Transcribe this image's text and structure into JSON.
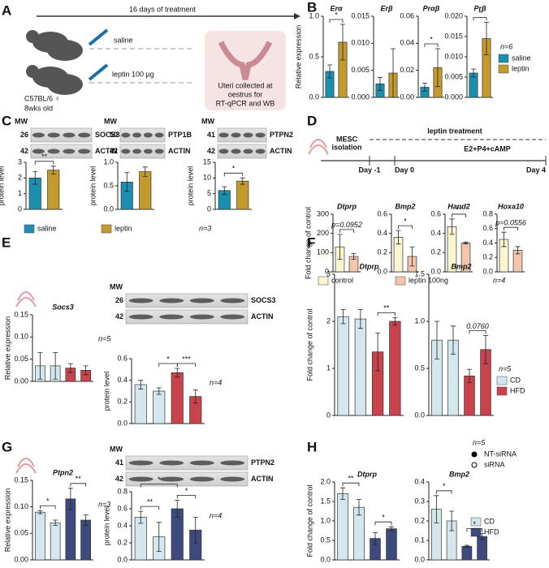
{
  "panel_labels": [
    "A",
    "B",
    "C",
    "D",
    "E",
    "F",
    "G",
    "H"
  ],
  "panel_a": {
    "duration": "16 days of treatment",
    "group1": "saline",
    "group2": "leptin 100 µg",
    "strain": "C57BL/6 ♀",
    "age": "8wks old",
    "outcome": [
      "Uteri collected at",
      "oestrus for",
      "RT-qPCR and WB"
    ]
  },
  "panel_d_schematic": {
    "isolation": [
      "MESC",
      "isolation"
    ],
    "treatment": "leptin treatment",
    "hormones": "E2+P4+cAMP",
    "days": [
      "Day -1",
      "Day 0",
      "Day 4"
    ]
  },
  "blots": [
    {
      "mw": "MW",
      "rows": [
        {
          "size": "26",
          "protein": "SOCS3"
        },
        {
          "size": "42",
          "protein": "ACTIN"
        }
      ]
    },
    {
      "mw": "MW",
      "rows": [
        {
          "size": "50",
          "protein": "PTP1B"
        },
        {
          "size": "42",
          "protein": "ACTIN"
        }
      ]
    },
    {
      "mw": "MW",
      "rows": [
        {
          "size": "41",
          "protein": "PTPN2"
        },
        {
          "size": "42",
          "protein": "ACTIN"
        }
      ]
    },
    {
      "mw": "MW",
      "rows": [
        {
          "size": "26",
          "protein": "SOCS3"
        },
        {
          "size": "42",
          "protein": "ACTIN"
        }
      ]
    },
    {
      "mw": "MW",
      "rows": [
        {
          "size": "41",
          "protein": "PTPN2"
        },
        {
          "size": "42",
          "protein": "ACTIN"
        }
      ]
    }
  ],
  "legends": [
    {
      "n": "n=6",
      "items": [
        {
          "name": "saline",
          "color": "#1b8fb0"
        },
        {
          "name": "leptin",
          "color": "#c49a2c"
        }
      ]
    },
    {
      "n": "n=3",
      "items": [
        {
          "name": "saline",
          "color": "#1b8fb0"
        },
        {
          "name": "leptin",
          "color": "#c49a2c"
        }
      ]
    },
    {
      "n": "n=4",
      "items": [
        {
          "name": "control",
          "color": "#fbf6cf"
        },
        {
          "name": "leptin 100ng",
          "color": "#f3c6ac"
        }
      ]
    },
    {
      "n": "n=5",
      "items": [
        {
          "name": "CD",
          "color": "#d4e7ec"
        },
        {
          "name": "HFD",
          "color": "#c8434b"
        }
      ]
    },
    {
      "n": "n=5",
      "items": [
        {
          "name": "NT-siRNA",
          "marker": "filled"
        },
        {
          "name": "siRNA",
          "marker": "open"
        },
        {
          "name": "CD",
          "color": "#d4e7ec"
        },
        {
          "name": "HFD",
          "color": "#3c4a7d"
        }
      ]
    }
  ],
  "chart_data": [
    {
      "type": "bar",
      "title": "Erα",
      "ylabel": "Relative expression",
      "values": [
        0.32,
        0.68
      ],
      "errors": [
        0.08,
        0.22
      ],
      "colors": [
        "#1b8fb0",
        "#c49a2c"
      ],
      "ylim": [
        0,
        1.0
      ],
      "yticks": [
        {
          "value": 0,
          "label": "0.0"
        },
        0.5,
        {
          "value": 1,
          "label": "1.0"
        }
      ],
      "brackets": [
        {
          "bars": [
            0,
            1
          ],
          "label": "*"
        }
      ]
    },
    {
      "type": "bar",
      "title": "Erβ",
      "values": [
        0.0025,
        0.0045
      ],
      "errors": [
        0.0012,
        0.0045
      ],
      "colors": [
        "#1b8fb0",
        "#c49a2c"
      ],
      "ylim": [
        0,
        0.015
      ],
      "yticks": [
        {
          "value": 0,
          "label": "0.000"
        },
        0.005,
        {
          "value": 0.01,
          "label": "0.010"
        },
        0.015
      ],
      "brackets": []
    },
    {
      "type": "bar",
      "title": "Prαβ",
      "values": [
        0.0075,
        0.022
      ],
      "errors": [
        0.003,
        0.014
      ],
      "colors": [
        "#1b8fb0",
        "#c49a2c"
      ],
      "ylim": [
        0,
        0.06
      ],
      "yticks": [
        {
          "value": 0,
          "label": "0.00"
        },
        0.02,
        0.04,
        0.06
      ],
      "brackets": [
        {
          "bars": [
            0,
            1
          ],
          "label": "*"
        }
      ]
    },
    {
      "type": "bar",
      "title": "Prβ",
      "values": [
        0.006,
        0.0145
      ],
      "errors": [
        0.001,
        0.004
      ],
      "colors": [
        "#1b8fb0",
        "#c49a2c"
      ],
      "ylim": [
        0,
        0.02
      ],
      "yticks": [
        {
          "value": 0,
          "label": "0.000"
        },
        0.005,
        {
          "value": 0.01,
          "label": "0.010"
        },
        0.015,
        {
          "value": 0.02,
          "label": "0.020"
        }
      ],
      "brackets": [
        {
          "bars": [
            0,
            1
          ],
          "label": "*"
        }
      ]
    },
    {
      "type": "bar",
      "ylabel": "protein level",
      "values": [
        2.0,
        2.5
      ],
      "errors": [
        0.4,
        0.25
      ],
      "colors": [
        "#1b8fb0",
        "#c49a2c"
      ],
      "ylim": [
        0,
        3
      ],
      "yticks": [
        0,
        1,
        2,
        3
      ],
      "brackets": [
        {
          "bars": [
            0,
            1
          ],
          "label": "**"
        }
      ]
    },
    {
      "type": "bar",
      "ylabel": "protein level",
      "values": [
        0.58,
        0.8
      ],
      "errors": [
        0.2,
        0.1
      ],
      "colors": [
        "#1b8fb0",
        "#c49a2c"
      ],
      "ylim": [
        0,
        1.0
      ],
      "yticks": [
        {
          "value": 0,
          "label": "0.0"
        },
        0.5,
        {
          "value": 1,
          "label": "1.0"
        }
      ],
      "brackets": []
    },
    {
      "type": "bar",
      "ylabel": "protein level",
      "values": [
        6,
        9
      ],
      "errors": [
        1.2,
        1
      ],
      "colors": [
        "#1b8fb0",
        "#c49a2c"
      ],
      "ylim": [
        0,
        15
      ],
      "yticks": [
        0,
        5,
        10,
        15
      ],
      "brackets": [
        {
          "bars": [
            0,
            1
          ],
          "label": "*"
        }
      ]
    },
    {
      "type": "bar",
      "title": "Dtprp",
      "ylabel": "Fold change of control",
      "values": [
        130,
        80
      ],
      "errors": [
        65,
        15
      ],
      "colors": [
        "#fbf6cf",
        "#f3c6ac"
      ],
      "ylim": [
        0,
        300
      ],
      "yticks": [
        0,
        100,
        200,
        300
      ],
      "brackets": [
        {
          "bars": [
            0,
            1
          ],
          "label": "p=0.0952"
        }
      ]
    },
    {
      "type": "bar",
      "title": "Bmp2",
      "values": [
        0.36,
        0.16
      ],
      "errors": [
        0.07,
        0.1
      ],
      "colors": [
        "#fbf6cf",
        "#f3c6ac"
      ],
      "ylim": [
        0,
        0.6
      ],
      "yticks": [
        {
          "value": 0,
          "label": "0.0"
        },
        0.2,
        0.4,
        0.6
      ],
      "brackets": [
        {
          "bars": [
            0,
            1
          ],
          "label": "*"
        }
      ]
    },
    {
      "type": "bar",
      "title": "Hand2",
      "values": [
        0.47,
        0.3
      ],
      "errors": [
        0.08,
        0.01
      ],
      "colors": [
        "#fbf6cf",
        "#f3c6ac"
      ],
      "ylim": [
        0,
        0.6
      ],
      "yticks": [
        {
          "value": 0,
          "label": "0.0"
        },
        0.2,
        0.4,
        0.6
      ],
      "brackets": [
        {
          "bars": [
            0,
            1
          ],
          "label": "**"
        }
      ]
    },
    {
      "type": "bar",
      "title": "Hoxa10",
      "values": [
        0.45,
        0.3
      ],
      "errors": [
        0.1,
        0.05
      ],
      "colors": [
        "#fbf6cf",
        "#f3c6ac"
      ],
      "ylim": [
        0,
        0.8
      ],
      "yticks": [
        {
          "value": 0,
          "label": "0.0"
        },
        0.2,
        0.4,
        0.6,
        0.8
      ],
      "brackets": [
        {
          "bars": [
            0,
            1
          ],
          "label": "p=0.0556"
        }
      ]
    },
    {
      "type": "bar",
      "title": "Socs3",
      "ylabel": "Relative expression",
      "note": "n=5",
      "values": [
        0.035,
        0.035,
        0.03,
        0.025
      ],
      "errors": [
        0.03,
        0.03,
        0.01,
        0.01
      ],
      "colors": [
        "#d4e7ec",
        "#d4e7ec",
        "#c8434b",
        "#c8434b"
      ],
      "ylim": [
        0,
        0.15
      ],
      "yticks": [
        {
          "value": 0,
          "label": "0.00"
        },
        0.05,
        {
          "value": 0.1,
          "label": "0.10"
        },
        0.15
      ],
      "brackets": []
    },
    {
      "type": "bar",
      "ylabel": "protein level",
      "note": "n=4",
      "values": [
        0.36,
        0.3,
        0.47,
        0.25
      ],
      "errors": [
        0.04,
        0.03,
        0.04,
        0.06
      ],
      "colors": [
        "#d4e7ec",
        "#d4e7ec",
        "#c8434b",
        "#c8434b"
      ],
      "ylim": [
        0,
        0.6
      ],
      "yticks": [
        {
          "value": 0,
          "label": "0.0"
        },
        0.2,
        0.4,
        0.6
      ],
      "brackets": [
        {
          "bars": [
            1,
            2
          ],
          "label": "*"
        },
        {
          "bars": [
            2,
            3
          ],
          "label": "***"
        }
      ]
    },
    {
      "type": "bar",
      "title": "Dtprp",
      "ylabel": "Fold change of control",
      "values": [
        2.1,
        2.05,
        1.35,
        2.0
      ],
      "errors": [
        0.15,
        0.2,
        0.4,
        0.08
      ],
      "colors": [
        "#d4e7ec",
        "#d4e7ec",
        "#c8434b",
        "#c8434b"
      ],
      "ylim": [
        0,
        3
      ],
      "yticks": [
        0,
        1,
        2,
        3
      ],
      "brackets": [
        {
          "bars": [
            2,
            3
          ],
          "label": "**"
        }
      ]
    },
    {
      "type": "bar",
      "title": "Bmp2",
      "values": [
        0.8,
        0.8,
        0.42,
        0.7
      ],
      "errors": [
        0.2,
        0.15,
        0.07,
        0.15
      ],
      "colors": [
        "#d4e7ec",
        "#d4e7ec",
        "#c8434b",
        "#c8434b"
      ],
      "ylim": [
        0,
        1.5
      ],
      "yticks": [
        {
          "value": 0,
          "label": "0.0"
        },
        0.5,
        {
          "value": 1,
          "label": "1.0"
        },
        1.5
      ],
      "brackets": [
        {
          "bars": [
            2,
            3
          ],
          "label": "0.0760"
        }
      ]
    },
    {
      "type": "bar",
      "title": "Ptpn2",
      "ylabel": "Relative expression",
      "note": "n=3",
      "values": [
        0.09,
        0.07,
        0.115,
        0.075
      ],
      "errors": [
        0.003,
        0.005,
        0.02,
        0.01
      ],
      "colors": [
        "#d4e7ec",
        "#d4e7ec",
        "#3c4a7d",
        "#3c4a7d"
      ],
      "ylim": [
        0,
        0.15
      ],
      "yticks": [
        {
          "value": 0,
          "label": "0.00"
        },
        0.05,
        {
          "value": 0.1,
          "label": "0.10"
        },
        0.15
      ],
      "brackets": [
        {
          "bars": [
            0,
            1
          ],
          "label": "*"
        },
        {
          "bars": [
            2,
            3
          ],
          "label": "**"
        }
      ]
    },
    {
      "type": "bar",
      "ylabel": "protein level",
      "note": "n=4",
      "values": [
        0.5,
        0.27,
        0.6,
        0.35
      ],
      "errors": [
        0.07,
        0.17,
        0.1,
        0.15
      ],
      "colors": [
        "#d4e7ec",
        "#d4e7ec",
        "#3c4a7d",
        "#3c4a7d"
      ],
      "ylim": [
        0,
        0.8
      ],
      "yticks": [
        {
          "value": 0,
          "label": "0.0"
        },
        0.2,
        0.4,
        0.6,
        0.8
      ],
      "brackets": [
        {
          "bars": [
            0,
            1
          ],
          "label": "**"
        },
        {
          "bars": [
            2,
            3
          ],
          "label": "*"
        },
        {
          "bars": [
            0,
            2
          ],
          "label": "*"
        }
      ]
    },
    {
      "type": "bar",
      "title": "Dtprp",
      "ylabel": "Fold change of control",
      "values": [
        1.7,
        1.35,
        0.55,
        0.8
      ],
      "errors": [
        0.15,
        0.2,
        0.15,
        0.05
      ],
      "colors": [
        "#d4e7ec",
        "#d4e7ec",
        "#3c4a7d",
        "#3c4a7d"
      ],
      "ylim": [
        0,
        2.0
      ],
      "yticks": [
        {
          "value": 0,
          "label": "0.0"
        },
        0.5,
        {
          "value": 1,
          "label": "1.0"
        },
        1.5,
        {
          "value": 2,
          "label": "2.0"
        }
      ],
      "brackets": [
        {
          "bars": [
            0,
            1
          ],
          "label": "**"
        },
        {
          "bars": [
            2,
            3
          ],
          "label": "*"
        }
      ]
    },
    {
      "type": "bar",
      "title": "Bmp2",
      "values": [
        0.26,
        0.2,
        0.07,
        0.12
      ],
      "errors": [
        0.07,
        0.05,
        0.005,
        0.015
      ],
      "colors": [
        "#d4e7ec",
        "#d4e7ec",
        "#3c4a7d",
        "#3c4a7d"
      ],
      "ylim": [
        0,
        0.4
      ],
      "yticks": [
        {
          "value": 0,
          "label": "0.0"
        },
        0.1,
        0.2,
        0.3,
        0.4
      ],
      "brackets": [
        {
          "bars": [
            0,
            1
          ],
          "label": "*"
        },
        {
          "bars": [
            2,
            3
          ],
          "label": "*"
        }
      ]
    }
  ]
}
